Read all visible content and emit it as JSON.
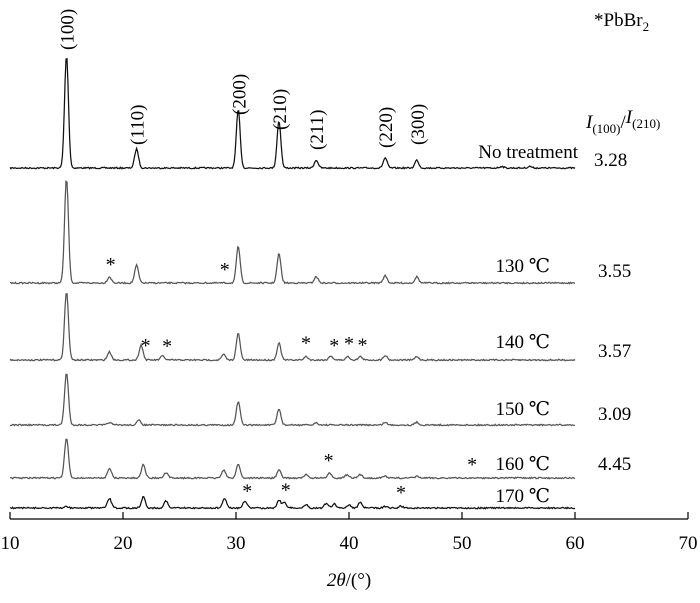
{
  "chart_data": {
    "type": "line",
    "title": "",
    "xlabel": "2θ/(°)",
    "xlabel_parts": {
      "var": "2θ",
      "unit": "/(°)"
    },
    "xlim": [
      10,
      70
    ],
    "x_ticks": [
      10,
      20,
      30,
      40,
      50,
      60,
      70
    ],
    "grid": false,
    "legend_marker": {
      "symbol": "*",
      "compound": "PbBr",
      "subscript": "2"
    },
    "ratio_header": {
      "I": "I",
      "sub1": "(100)",
      "slash": "/",
      "sub2": "(210)"
    },
    "peak_labels": [
      {
        "label": "(100)",
        "x": 15.0
      },
      {
        "label": "(110)",
        "x": 21.2
      },
      {
        "label": "(200)",
        "x": 30.2
      },
      {
        "label": "(210)",
        "x": 33.8
      },
      {
        "label": "(211)",
        "x": 37.1
      },
      {
        "label": "(220)",
        "x": 43.2
      },
      {
        "label": "(300)",
        "x": 46.0
      }
    ],
    "series": [
      {
        "name": "No treatment",
        "ratio": "3.28",
        "color": "#111111",
        "peaks": [
          [
            15.0,
            1.0
          ],
          [
            21.2,
            0.17
          ],
          [
            30.2,
            0.52
          ],
          [
            33.8,
            0.42
          ],
          [
            37.1,
            0.07
          ],
          [
            43.2,
            0.09
          ],
          [
            46.0,
            0.07
          ],
          [
            53.5,
            0.015
          ],
          [
            56.0,
            0.015
          ]
        ],
        "stars": []
      },
      {
        "name": "130 ℃",
        "ratio": "3.55",
        "color": "#555555",
        "peaks": [
          [
            15.0,
            1.0
          ],
          [
            18.8,
            0.06
          ],
          [
            21.2,
            0.17
          ],
          [
            30.2,
            0.35
          ],
          [
            33.8,
            0.28
          ],
          [
            37.1,
            0.06
          ],
          [
            43.2,
            0.07
          ],
          [
            46.0,
            0.06
          ]
        ],
        "stars": [
          18.9,
          29.0
        ]
      },
      {
        "name": "140 ℃",
        "ratio": "3.57",
        "color": "#555555",
        "peaks": [
          [
            15.0,
            1.0
          ],
          [
            18.8,
            0.12
          ],
          [
            21.6,
            0.22
          ],
          [
            23.5,
            0.06
          ],
          [
            28.9,
            0.08
          ],
          [
            30.2,
            0.39
          ],
          [
            33.8,
            0.25
          ],
          [
            36.2,
            0.05
          ],
          [
            38.4,
            0.06
          ],
          [
            39.9,
            0.05
          ],
          [
            41.0,
            0.05
          ],
          [
            43.2,
            0.07
          ],
          [
            46.0,
            0.05
          ]
        ],
        "stars": [
          22.0,
          23.9,
          36.2,
          38.7,
          40.0,
          41.2
        ]
      },
      {
        "name": "150 ℃",
        "ratio": "3.09",
        "color": "#555555",
        "peaks": [
          [
            15.0,
            1.0
          ],
          [
            18.8,
            0.05
          ],
          [
            21.4,
            0.09
          ],
          [
            30.2,
            0.45
          ],
          [
            33.8,
            0.31
          ],
          [
            37.1,
            0.04
          ],
          [
            43.2,
            0.05
          ],
          [
            46.0,
            0.05
          ]
        ],
        "stars": []
      },
      {
        "name": "160 ℃",
        "ratio": "4.45",
        "color": "#555555",
        "peaks": [
          [
            15.0,
            1.0
          ],
          [
            18.8,
            0.25
          ],
          [
            21.8,
            0.35
          ],
          [
            23.8,
            0.13
          ],
          [
            28.9,
            0.2
          ],
          [
            30.2,
            0.35
          ],
          [
            33.8,
            0.2
          ],
          [
            36.2,
            0.08
          ],
          [
            38.3,
            0.12
          ],
          [
            39.8,
            0.08
          ],
          [
            41.0,
            0.08
          ],
          [
            43.2,
            0.05
          ],
          [
            46.0,
            0.04
          ]
        ],
        "stars": [
          38.2,
          50.9
        ]
      },
      {
        "name": "170 ℃",
        "ratio": "",
        "color": "#111111",
        "peaks": [
          [
            15.0,
            0.1
          ],
          [
            18.8,
            0.6
          ],
          [
            21.8,
            0.7
          ],
          [
            23.8,
            0.45
          ],
          [
            29.0,
            0.6
          ],
          [
            30.8,
            0.45
          ],
          [
            33.8,
            0.5
          ],
          [
            34.3,
            0.35
          ],
          [
            36.2,
            0.2
          ],
          [
            38.0,
            0.3
          ],
          [
            38.7,
            0.25
          ],
          [
            40.0,
            0.2
          ],
          [
            41.0,
            0.35
          ],
          [
            43.2,
            0.1
          ],
          [
            44.6,
            0.12
          ]
        ],
        "stars": [
          31.0,
          34.4,
          44.6
        ]
      }
    ]
  }
}
